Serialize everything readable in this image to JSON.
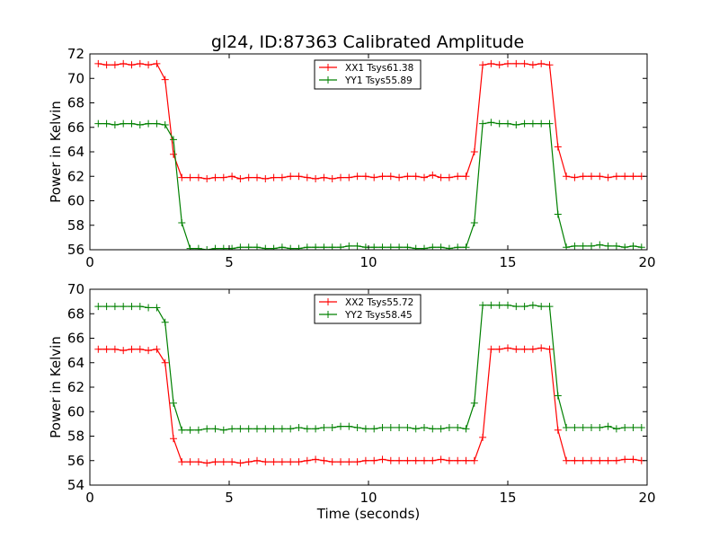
{
  "figure_title": "gl24, ID:87363 Calibrated Amplitude",
  "colors": {
    "red": "#ff0000",
    "green": "#008000"
  },
  "chart_data": [
    {
      "type": "line",
      "title": "",
      "xlabel": "",
      "ylabel": "Power in Kelvin",
      "xlim": [
        0,
        20
      ],
      "ylim": [
        56,
        72
      ],
      "xticks": [
        "0",
        "5",
        "10",
        "15",
        "20"
      ],
      "yticks": [
        "56",
        "58",
        "60",
        "62",
        "64",
        "66",
        "68",
        "70",
        "72"
      ],
      "legend_position": "top-center",
      "x": [
        0.3,
        0.6,
        0.9,
        1.2,
        1.5,
        1.8,
        2.1,
        2.4,
        2.7,
        3.0,
        3.3,
        3.6,
        3.9,
        4.2,
        4.5,
        4.8,
        5.1,
        5.4,
        5.7,
        6.0,
        6.3,
        6.6,
        6.9,
        7.2,
        7.5,
        7.8,
        8.1,
        8.4,
        8.7,
        9.0,
        9.3,
        9.6,
        9.9,
        10.2,
        10.5,
        10.8,
        11.1,
        11.4,
        11.7,
        12.0,
        12.3,
        12.6,
        12.9,
        13.2,
        13.5,
        13.8,
        14.1,
        14.4,
        14.7,
        15.0,
        15.3,
        15.6,
        15.9,
        16.2,
        16.5,
        16.8,
        17.1,
        17.4,
        17.7,
        18.0,
        18.3,
        18.6,
        18.9,
        19.2,
        19.5,
        19.8
      ],
      "series": [
        {
          "name": "XX1 Tsys61.38",
          "color": "#ff0000",
          "values": [
            71.2,
            71.1,
            71.1,
            71.2,
            71.1,
            71.2,
            71.1,
            71.2,
            69.9,
            63.8,
            61.9,
            61.9,
            61.9,
            61.8,
            61.9,
            61.9,
            62.0,
            61.8,
            61.9,
            61.9,
            61.8,
            61.9,
            61.9,
            62.0,
            62.0,
            61.9,
            61.8,
            61.9,
            61.8,
            61.9,
            61.9,
            62.0,
            62.0,
            61.9,
            62.0,
            62.0,
            61.9,
            62.0,
            62.0,
            61.9,
            62.1,
            61.9,
            61.9,
            62.0,
            62.0,
            64.0,
            71.1,
            71.2,
            71.1,
            71.2,
            71.2,
            71.2,
            71.1,
            71.2,
            71.1,
            64.4,
            62.0,
            61.9,
            62.0,
            62.0,
            62.0,
            61.9,
            62.0,
            62.0,
            62.0,
            62.0
          ]
        },
        {
          "name": "YY1 Tsys55.89",
          "color": "#008000",
          "values": [
            66.3,
            66.3,
            66.2,
            66.3,
            66.3,
            66.2,
            66.3,
            66.3,
            66.2,
            65.0,
            58.2,
            56.1,
            56.1,
            56.0,
            56.1,
            56.1,
            56.1,
            56.2,
            56.2,
            56.2,
            56.1,
            56.1,
            56.2,
            56.1,
            56.1,
            56.2,
            56.2,
            56.2,
            56.2,
            56.2,
            56.3,
            56.3,
            56.2,
            56.2,
            56.2,
            56.2,
            56.2,
            56.2,
            56.1,
            56.1,
            56.2,
            56.2,
            56.1,
            56.2,
            56.2,
            58.2,
            66.3,
            66.4,
            66.3,
            66.3,
            66.2,
            66.3,
            66.3,
            66.3,
            66.3,
            58.9,
            56.2,
            56.3,
            56.3,
            56.3,
            56.4,
            56.3,
            56.3,
            56.2,
            56.3,
            56.2
          ]
        }
      ]
    },
    {
      "type": "line",
      "title": "",
      "xlabel": "Time (seconds)",
      "ylabel": "Power in Kelvin",
      "xlim": [
        0,
        20
      ],
      "ylim": [
        54,
        70
      ],
      "xticks": [
        "0",
        "5",
        "10",
        "15",
        "20"
      ],
      "yticks": [
        "54",
        "56",
        "58",
        "60",
        "62",
        "64",
        "66",
        "68",
        "70"
      ],
      "legend_position": "top-center",
      "x": [
        0.3,
        0.6,
        0.9,
        1.2,
        1.5,
        1.8,
        2.1,
        2.4,
        2.7,
        3.0,
        3.3,
        3.6,
        3.9,
        4.2,
        4.5,
        4.8,
        5.1,
        5.4,
        5.7,
        6.0,
        6.3,
        6.6,
        6.9,
        7.2,
        7.5,
        7.8,
        8.1,
        8.4,
        8.7,
        9.0,
        9.3,
        9.6,
        9.9,
        10.2,
        10.5,
        10.8,
        11.1,
        11.4,
        11.7,
        12.0,
        12.3,
        12.6,
        12.9,
        13.2,
        13.5,
        13.8,
        14.1,
        14.4,
        14.7,
        15.0,
        15.3,
        15.6,
        15.9,
        16.2,
        16.5,
        16.8,
        17.1,
        17.4,
        17.7,
        18.0,
        18.3,
        18.6,
        18.9,
        19.2,
        19.5,
        19.8
      ],
      "series": [
        {
          "name": "XX2 Tsys55.72",
          "color": "#ff0000",
          "values": [
            65.1,
            65.1,
            65.1,
            65.0,
            65.1,
            65.1,
            65.0,
            65.1,
            64.0,
            57.8,
            55.9,
            55.9,
            55.9,
            55.8,
            55.9,
            55.9,
            55.9,
            55.8,
            55.9,
            56.0,
            55.9,
            55.9,
            55.9,
            55.9,
            55.9,
            56.0,
            56.1,
            56.0,
            55.9,
            55.9,
            55.9,
            55.9,
            56.0,
            56.0,
            56.1,
            56.0,
            56.0,
            56.0,
            56.0,
            56.0,
            56.0,
            56.1,
            56.0,
            56.0,
            56.0,
            56.0,
            57.9,
            65.1,
            65.1,
            65.2,
            65.1,
            65.1,
            65.1,
            65.2,
            65.1,
            58.5,
            56.0,
            56.0,
            56.0,
            56.0,
            56.0,
            56.0,
            56.0,
            56.1,
            56.1,
            56.0
          ]
        },
        {
          "name": "YY2 Tsys58.45",
          "color": "#008000",
          "values": [
            68.6,
            68.6,
            68.6,
            68.6,
            68.6,
            68.6,
            68.5,
            68.5,
            67.3,
            60.7,
            58.5,
            58.5,
            58.5,
            58.6,
            58.6,
            58.5,
            58.6,
            58.6,
            58.6,
            58.6,
            58.6,
            58.6,
            58.6,
            58.6,
            58.7,
            58.6,
            58.6,
            58.7,
            58.7,
            58.8,
            58.8,
            58.7,
            58.6,
            58.6,
            58.7,
            58.7,
            58.7,
            58.7,
            58.6,
            58.7,
            58.6,
            58.6,
            58.7,
            58.7,
            58.6,
            60.7,
            68.7,
            68.7,
            68.7,
            68.7,
            68.6,
            68.6,
            68.7,
            68.6,
            68.6,
            61.3,
            58.7,
            58.7,
            58.7,
            58.7,
            58.7,
            58.8,
            58.6,
            58.7,
            58.7,
            58.7
          ]
        }
      ]
    }
  ]
}
